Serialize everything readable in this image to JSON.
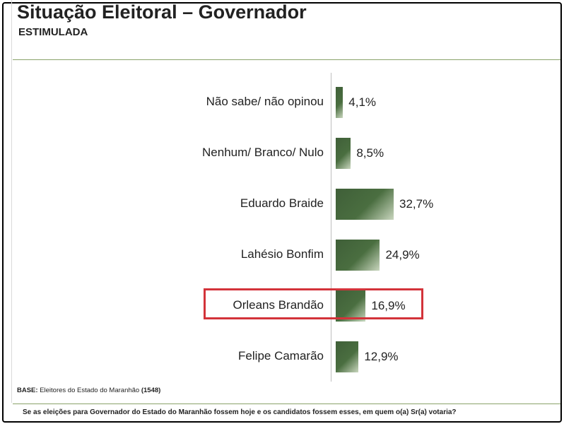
{
  "header": {
    "title": "Situação Eleitoral – Governador",
    "subtitle": "ESTIMULADA"
  },
  "chart_data": {
    "type": "bar",
    "orientation": "horizontal",
    "title": "Situação Eleitoral – Governador",
    "subtitle": "ESTIMULADA",
    "categories": [
      "Não sabe/ não opinou",
      "Nenhum/ Branco/ Nulo",
      "Eduardo Braide",
      "Lahésio Bonfim",
      "Orleans Brandão",
      "Felipe Camarão"
    ],
    "values": [
      4.1,
      8.5,
      32.7,
      24.9,
      16.9,
      12.9
    ],
    "value_labels": [
      "4,1%",
      "8,5%",
      "32,7%",
      "24,9%",
      "16,9%",
      "12,9%"
    ],
    "unit": "%",
    "highlighted_category": "Orleans Brandão",
    "bar_color": "#4a6e40",
    "highlight_color": "#d3333a",
    "grid": false,
    "legend": "none"
  },
  "footer": {
    "base_label": "BASE:",
    "base_text": "Eleitores do Estado do Maranhão",
    "base_count": "(1548)",
    "question": "Se as eleições para Governador do Estado do Maranhão fossem hoje e os candidatos fossem esses, em quem o(a) Sr(a) votaria?"
  }
}
